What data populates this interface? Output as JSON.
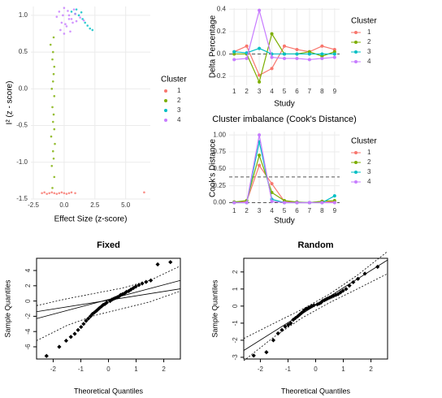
{
  "chart_data": [
    {
      "type": "scatter",
      "xlabel": "Effect Size (z-score)",
      "ylabel": "I² (z - score)",
      "legend_title": "Cluster",
      "grid": true,
      "xlim": [
        -2.7,
        7.0
      ],
      "ylim": [
        -1.5,
        1.12
      ],
      "xticks": [
        {
          "value": -2.5,
          "label": "-2.5"
        },
        {
          "value": 0,
          "label": "0.0"
        },
        {
          "value": 2.5,
          "label": "2.5"
        },
        {
          "value": 5,
          "label": "5.0"
        }
      ],
      "yticks": [
        {
          "value": -1.5,
          "label": "-1.5"
        },
        {
          "value": -1,
          "label": "-1.0"
        },
        {
          "value": -0.5,
          "label": "-0.5"
        },
        {
          "value": 0,
          "label": "0.0"
        },
        {
          "value": 0.5,
          "label": "0.5"
        },
        {
          "value": 1,
          "label": "1.0"
        }
      ],
      "series": [
        {
          "name": "1",
          "color": "#F8766D",
          "x": [
            -1.8,
            -1.6,
            -1.4,
            -1.2,
            -1.0,
            -0.8,
            -0.6,
            -0.4,
            -0.2,
            0.0,
            0.2,
            0.4,
            0.6,
            0.9,
            6.5
          ],
          "y": [
            -1.42,
            -1.41,
            -1.43,
            -1.42,
            -1.41,
            -1.42,
            -1.43,
            -1.42,
            -1.41,
            -1.42,
            -1.43,
            -1.42,
            -1.41,
            -1.42,
            -1.41
          ]
        },
        {
          "name": "2",
          "color": "#7CAE00",
          "x": [
            -0.95,
            -0.8,
            -1.0,
            -0.85,
            -0.9,
            -0.75,
            -1.05,
            -0.8,
            -0.9,
            -0.85,
            -0.95,
            -0.8,
            -1.0,
            -0.9,
            -0.85,
            -0.8,
            -0.95,
            -0.9,
            -1.1,
            -0.85
          ],
          "y": [
            -1.35,
            -1.2,
            -1.05,
            -0.95,
            -0.85,
            -0.75,
            -0.65,
            -0.55,
            -0.45,
            -0.35,
            -0.25,
            -0.1,
            0.0,
            0.1,
            0.2,
            0.3,
            0.4,
            0.5,
            0.6,
            0.7
          ]
        },
        {
          "name": "3",
          "color": "#00BFC4",
          "x": [
            0.6,
            0.9,
            1.2,
            1.5,
            1.7,
            1.9,
            2.1,
            2.3,
            1.0,
            1.4
          ],
          "y": [
            1.05,
            1.02,
            1.0,
            0.95,
            0.9,
            0.86,
            0.82,
            0.8,
            1.08,
            1.04
          ]
        },
        {
          "name": "4",
          "color": "#C77CFF",
          "x": [
            -0.6,
            -0.4,
            -0.2,
            0.0,
            0.2,
            0.4,
            0.6,
            0.8,
            1.0,
            -0.3,
            0.1,
            0.5,
            0.9,
            1.3,
            -0.1,
            0.3,
            0.7,
            1.6,
            0.0,
            0.4
          ],
          "y": [
            0.98,
            1.05,
            0.9,
            1.1,
            0.85,
            1.0,
            0.95,
            1.08,
            0.92,
            0.8,
            0.88,
            0.78,
            1.02,
            0.97,
            1.0,
            1.06,
            0.9,
            0.93,
            0.75,
            0.95
          ]
        }
      ]
    },
    {
      "type": "line",
      "xlabel": "Study",
      "ylabel": "Delta Percentage",
      "legend_title": "Cluster",
      "grid": true,
      "x": [
        1,
        2,
        3,
        4,
        5,
        6,
        7,
        8,
        9
      ],
      "xlim": [
        0.6,
        9.4
      ],
      "xticks": [
        1,
        2,
        3,
        4,
        5,
        6,
        7,
        8,
        9
      ],
      "ylim": [
        -0.28,
        0.41
      ],
      "yticks": [
        {
          "value": -0.2,
          "label": "-0.2"
        },
        {
          "value": 0,
          "label": "0.0"
        },
        {
          "value": 0.2,
          "label": "0.2"
        },
        {
          "value": 0.4,
          "label": "0.4"
        }
      ],
      "hlines": [
        0
      ],
      "series": [
        {
          "name": "1",
          "color": "#F8766D",
          "values": [
            0.02,
            0.07,
            -0.19,
            -0.13,
            0.07,
            0.04,
            0.02,
            0.07,
            0.04
          ]
        },
        {
          "name": "2",
          "color": "#7CAE00",
          "values": [
            0.0,
            0.0,
            -0.25,
            0.18,
            0.0,
            0.0,
            0.02,
            -0.02,
            0.02
          ]
        },
        {
          "name": "3",
          "color": "#00BFC4",
          "values": [
            0.02,
            0.01,
            0.05,
            0.0,
            0.0,
            0.0,
            0.0,
            0.0,
            0.0
          ]
        },
        {
          "name": "4",
          "color": "#C77CFF",
          "values": [
            -0.05,
            -0.04,
            0.39,
            -0.03,
            -0.04,
            -0.04,
            -0.05,
            -0.04,
            -0.03
          ]
        }
      ]
    },
    {
      "type": "line",
      "title": "Cluster imbalance (Cook's Distance)",
      "xlabel": "Study",
      "ylabel": "Cook's Distance",
      "legend_title": "Cluster",
      "grid": true,
      "x": [
        1,
        2,
        3,
        4,
        5,
        6,
        7,
        8,
        9
      ],
      "xlim": [
        0.6,
        9.4
      ],
      "xticks": [
        1,
        2,
        3,
        4,
        5,
        6,
        7,
        8,
        9
      ],
      "ylim": [
        -0.03,
        1.05
      ],
      "yticks": [
        {
          "value": 0,
          "label": "0.00"
        },
        {
          "value": 0.25,
          "label": "0.25"
        },
        {
          "value": 0.5,
          "label": "0.50"
        },
        {
          "value": 0.75,
          "label": "0.75"
        },
        {
          "value": 1,
          "label": "1.00"
        }
      ],
      "hlines": [
        0.38,
        0
      ],
      "series": [
        {
          "name": "1",
          "color": "#F8766D",
          "values": [
            0.0,
            0.02,
            0.55,
            0.28,
            0.02,
            0.0,
            0.0,
            0.02,
            0.01
          ]
        },
        {
          "name": "2",
          "color": "#7CAE00",
          "values": [
            0.01,
            0.03,
            0.7,
            0.15,
            0.03,
            0.01,
            0.0,
            0.02,
            0.03
          ]
        },
        {
          "name": "3",
          "color": "#00BFC4",
          "values": [
            0.0,
            0.0,
            0.9,
            0.05,
            0.0,
            0.0,
            0.0,
            0.0,
            0.1
          ]
        },
        {
          "name": "4",
          "color": "#C77CFF",
          "values": [
            0.0,
            0.0,
            1.0,
            0.02,
            0.0,
            0.0,
            0.0,
            0.0,
            0.0
          ]
        }
      ]
    },
    {
      "type": "qq",
      "title": "Fixed",
      "xlabel": "Theoretical Quantiles",
      "ylabel": "Sample Quantiles",
      "xlim": [
        -2.6,
        2.6
      ],
      "ylim": [
        -7.6,
        5.6
      ],
      "xticks": [
        -2,
        -1,
        0,
        1,
        2
      ],
      "yticks": [
        -6,
        -4,
        -2,
        0,
        2,
        4
      ],
      "series": [
        {
          "color": "#000000",
          "x": [
            -2.24,
            -1.78,
            -1.53,
            -1.36,
            -1.22,
            -1.1,
            -0.99,
            -0.9,
            -0.81,
            -0.73,
            -0.65,
            -0.58,
            -0.51,
            -0.44,
            -0.38,
            -0.32,
            -0.25,
            -0.19,
            -0.13,
            -0.06,
            0.06,
            0.13,
            0.19,
            0.25,
            0.32,
            0.38,
            0.44,
            0.51,
            0.58,
            0.65,
            0.73,
            0.81,
            0.9,
            0.99,
            1.1,
            1.22,
            1.36,
            1.53,
            1.78,
            2.24
          ],
          "y": [
            -7.2,
            -6.0,
            -5.2,
            -4.7,
            -4.3,
            -3.8,
            -3.4,
            -3.0,
            -2.6,
            -2.3,
            -2.0,
            -1.7,
            -1.5,
            -1.3,
            -1.1,
            -0.9,
            -0.7,
            -0.5,
            -0.4,
            -0.2,
            0.0,
            0.2,
            0.3,
            0.4,
            0.5,
            0.6,
            0.8,
            0.9,
            1.0,
            1.2,
            1.3,
            1.5,
            1.7,
            1.9,
            2.1,
            2.3,
            2.5,
            2.7,
            4.8,
            5.1
          ]
        }
      ],
      "reference_lines": [
        {
          "style": "solid",
          "x": [
            -2.6,
            2.6
          ],
          "y": [
            -2.3,
            2.7
          ]
        },
        {
          "style": "solid",
          "x": [
            -2.6,
            2.6
          ],
          "y": [
            -1.4,
            1.6
          ]
        },
        {
          "style": "dotted",
          "x": [
            -2.6,
            -1.5,
            -0.5,
            0.5,
            1.5,
            2.6
          ],
          "y": [
            -0.6,
            0.3,
            1.0,
            1.7,
            2.7,
            4.6
          ]
        },
        {
          "style": "dotted",
          "x": [
            -2.6,
            -1.5,
            -0.5,
            0.5,
            1.5,
            2.6
          ],
          "y": [
            -5.2,
            -3.2,
            -1.9,
            -1.0,
            -0.1,
            1.3
          ]
        }
      ]
    },
    {
      "type": "qq",
      "title": "Random",
      "xlabel": "Theoretical Quantiles",
      "ylabel": "Sample Quantiles",
      "xlim": [
        -2.6,
        2.6
      ],
      "ylim": [
        -3.1,
        2.8
      ],
      "xticks": [
        -2,
        -1,
        0,
        1,
        2
      ],
      "yticks": [
        -3,
        -2,
        -1,
        0,
        1,
        2
      ],
      "series": [
        {
          "color": "#000000",
          "x": [
            -2.24,
            -1.78,
            -1.53,
            -1.36,
            -1.22,
            -1.1,
            -0.99,
            -0.9,
            -0.81,
            -0.73,
            -0.65,
            -0.58,
            -0.51,
            -0.44,
            -0.38,
            -0.32,
            -0.25,
            -0.19,
            -0.13,
            -0.06,
            0.06,
            0.13,
            0.19,
            0.25,
            0.32,
            0.38,
            0.44,
            0.51,
            0.58,
            0.65,
            0.73,
            0.81,
            0.9,
            0.99,
            1.1,
            1.22,
            1.36,
            1.53,
            1.78,
            2.24
          ],
          "y": [
            -2.9,
            -2.7,
            -2.0,
            -1.6,
            -1.4,
            -1.2,
            -1.1,
            -1.0,
            -0.8,
            -0.7,
            -0.6,
            -0.5,
            -0.4,
            -0.3,
            -0.2,
            -0.15,
            -0.1,
            -0.05,
            0.0,
            0.05,
            0.1,
            0.15,
            0.2,
            0.3,
            0.35,
            0.4,
            0.45,
            0.5,
            0.55,
            0.6,
            0.65,
            0.7,
            0.8,
            0.9,
            1.0,
            1.2,
            1.4,
            1.6,
            1.9,
            2.3
          ]
        }
      ],
      "reference_lines": [
        {
          "style": "solid",
          "x": [
            -2.6,
            2.6
          ],
          "y": [
            -2.6,
            2.7
          ]
        },
        {
          "style": "dotted",
          "x": [
            -2.6,
            -1.5,
            -0.5,
            0.5,
            1.5,
            2.6
          ],
          "y": [
            -1.9,
            -1.0,
            -0.2,
            0.7,
            1.8,
            3.2
          ]
        },
        {
          "style": "dotted",
          "x": [
            -2.6,
            -1.5,
            -0.5,
            0.5,
            1.5,
            2.6
          ],
          "y": [
            -3.2,
            -1.8,
            -0.7,
            0.2,
            1.0,
            1.9
          ]
        }
      ]
    }
  ]
}
